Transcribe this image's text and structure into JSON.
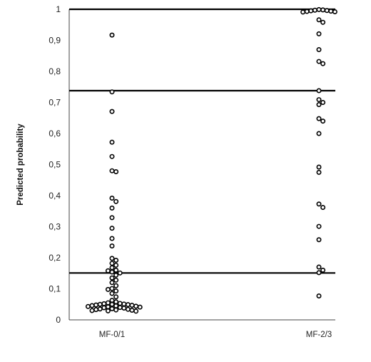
{
  "chart_data": {
    "type": "scatter",
    "title": "",
    "xlabel": "",
    "ylabel": "Predicted probability",
    "ylim": [
      0,
      1
    ],
    "ytick_values": [
      0,
      0.1,
      0.2,
      0.3,
      0.4,
      0.5,
      0.6,
      0.7,
      0.8,
      0.9,
      1
    ],
    "ytick_labels": [
      "0",
      "0,1",
      "0,2",
      "0,3",
      "0,4",
      "0,5",
      "0,6",
      "0,7",
      "0,8",
      "0,9",
      "1"
    ],
    "categories": [
      "MF-0/1",
      "MF-2/3"
    ],
    "grid": false,
    "reference_lines": [
      1.0,
      0.738,
      0.151
    ],
    "series": [
      {
        "category": "MF-0/1",
        "values": [
          0.917,
          0.734,
          0.671,
          0.572,
          0.526,
          0.48,
          0.477,
          0.392,
          0.381,
          0.36,
          0.329,
          0.295,
          0.262,
          0.238,
          0.198,
          0.192,
          0.182,
          0.176,
          0.168,
          0.16,
          0.158,
          0.154,
          0.151,
          0.144,
          0.135,
          0.128,
          0.12,
          0.11,
          0.101,
          0.098,
          0.093,
          0.085,
          0.074,
          0.063,
          0.058,
          0.055,
          0.053,
          0.052,
          0.051,
          0.05,
          0.05,
          0.049,
          0.048,
          0.047,
          0.046,
          0.045,
          0.044,
          0.043,
          0.042,
          0.041,
          0.04,
          0.039,
          0.038,
          0.036,
          0.035,
          0.034,
          0.033,
          0.032,
          0.031,
          0.03,
          0.029,
          0.028
        ]
      },
      {
        "category": "MF-2/3",
        "values": [
          0.999,
          0.998,
          0.997,
          0.996,
          0.995,
          0.994,
          0.993,
          0.992,
          0.991,
          0.966,
          0.958,
          0.921,
          0.87,
          0.832,
          0.825,
          0.738,
          0.709,
          0.7,
          0.693,
          0.648,
          0.64,
          0.6,
          0.492,
          0.475,
          0.373,
          0.362,
          0.301,
          0.258,
          0.17,
          0.16,
          0.152,
          0.077
        ]
      }
    ]
  }
}
